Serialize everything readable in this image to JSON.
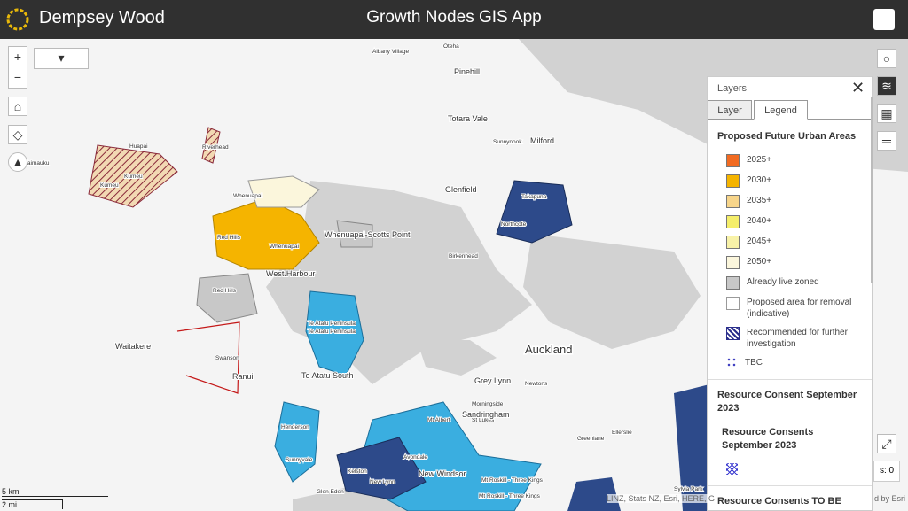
{
  "header": {
    "brand": "Dempsey Wood",
    "title": "Growth Nodes GIS App"
  },
  "panel": {
    "title": "Layers",
    "tabs": [
      "Layer",
      "Legend"
    ],
    "sections": [
      {
        "title": "Proposed Future Urban Areas",
        "items": [
          {
            "label": "2025+",
            "color": "#f26b21",
            "pattern": "fill"
          },
          {
            "label": "2030+",
            "color": "#f5b400",
            "pattern": "fill"
          },
          {
            "label": "2035+",
            "color": "#f7d58a",
            "pattern": "fill"
          },
          {
            "label": "2040+",
            "color": "#f5ee6a",
            "pattern": "fill"
          },
          {
            "label": "2045+",
            "color": "#f8f2a8",
            "pattern": "fill"
          },
          {
            "label": "2050+",
            "color": "#fbf6dc",
            "pattern": "fill"
          },
          {
            "label": "Already live zoned",
            "color": "#c8c8c8",
            "pattern": "fill"
          },
          {
            "label": "Proposed area for removal (indicative)",
            "color": "#9a9a9a",
            "pattern": "outline"
          },
          {
            "label": "Recommended for further investigation",
            "color": "#2b2f8c",
            "pattern": "hatch"
          },
          {
            "label": "TBC",
            "color": "#3c3cc0",
            "pattern": "dots"
          }
        ]
      },
      {
        "title": "Resource Consent September 2023",
        "subtitle": "Resource Consents September 2023",
        "items": [
          {
            "label": "",
            "color": "#3b3bd0",
            "pattern": "cross"
          }
        ]
      },
      {
        "title": "Resource Consents TO BE"
      }
    ]
  },
  "scale": {
    "metric": "5 km",
    "imperial": "2 mi"
  },
  "attribution": [
    "LINZ, Stats NZ, Esri, HERE, G",
    "d by Esri"
  ],
  "count_label": "s: 0",
  "map_labels": [
    "Oteha",
    "Albany Village",
    "Pinehill",
    "Sunnynook",
    "Totara Vale",
    "Milford",
    "Glenfield",
    "Takapuna",
    "Northcote",
    "Birkenhead",
    "Huapai",
    "Riverhead",
    "Waimauku",
    "Kumeu",
    "Kumeu",
    "Whenuapai",
    "Red Hills",
    "Whenuapai",
    "Whenuapai-Scotts Point",
    "West.Harbour",
    "Red Hills",
    "Te Atatu Peninsula",
    "Te Atatu Peninsula",
    "Waitakere",
    "Swanson",
    "Ranui",
    "Te Atatu South",
    "Auckland",
    "Grey Lynn",
    "Newtons",
    "Morningside",
    "St Lukes",
    "Henderson",
    "Sunnyvale",
    "Sandringham",
    "Greenlane",
    "Ellerslie",
    "Kelston",
    "New Lynn",
    "Glen Eden",
    "New Windsor",
    "Mt Roskill - Three Kings",
    "Mt Albert",
    "Sylvia Park",
    "Avondale",
    "Mt Roskill - Three Kings"
  ]
}
